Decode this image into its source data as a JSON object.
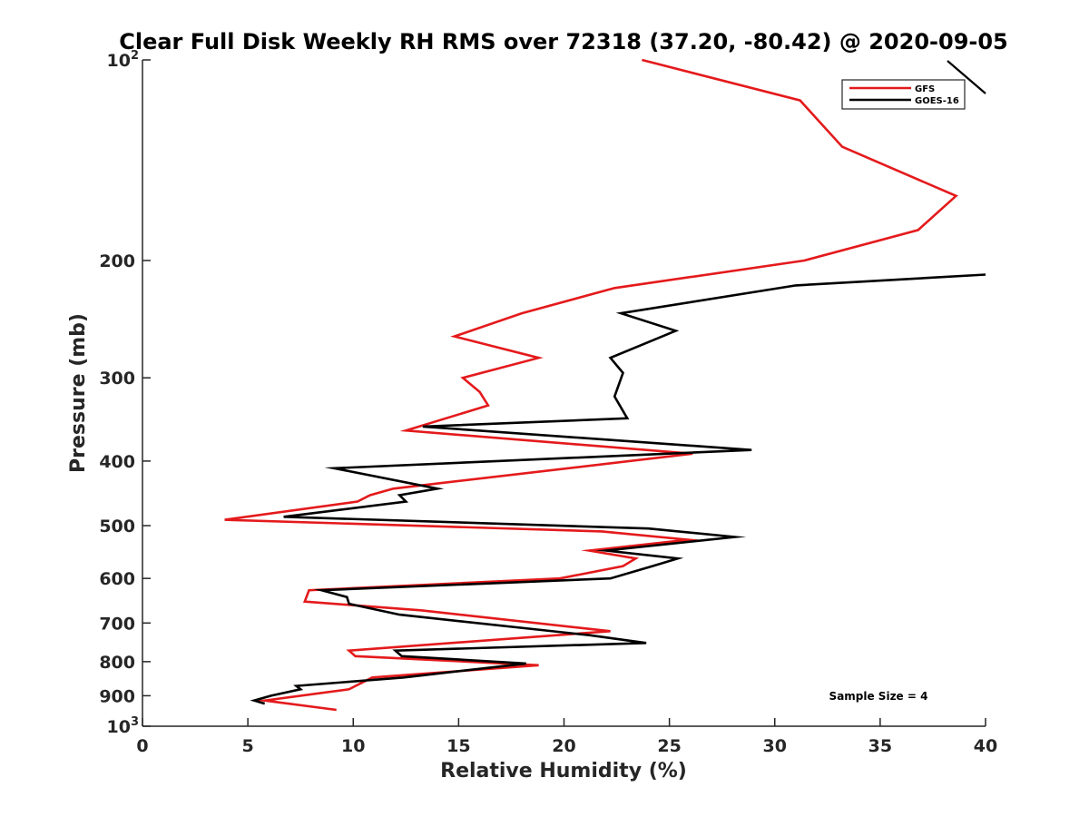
{
  "chart_data": {
    "type": "line",
    "title": "Clear Full Disk Weekly RH RMS over 72318 (37.20, -80.42) @ 2020-09-05",
    "xlabel": "Relative Humidity (%)",
    "ylabel": "Pressure (mb)",
    "xlim": [
      0,
      40
    ],
    "ylim": [
      100,
      1000
    ],
    "y_scale": "log",
    "y_reversed": true,
    "grid": false,
    "legend_position": "top-right",
    "x_ticks": [
      0,
      5,
      10,
      15,
      20,
      25,
      30,
      35,
      40
    ],
    "y_ticks": [
      {
        "value": 100,
        "label": "10",
        "sup": "2"
      },
      {
        "value": 200,
        "label": "200",
        "sup": ""
      },
      {
        "value": 300,
        "label": "300",
        "sup": ""
      },
      {
        "value": 400,
        "label": "400",
        "sup": ""
      },
      {
        "value": 500,
        "label": "500",
        "sup": ""
      },
      {
        "value": 600,
        "label": "600",
        "sup": ""
      },
      {
        "value": 700,
        "label": "700",
        "sup": ""
      },
      {
        "value": 800,
        "label": "800",
        "sup": ""
      },
      {
        "value": 900,
        "label": "900",
        "sup": ""
      },
      {
        "value": 1000,
        "label": "10",
        "sup": "3"
      }
    ],
    "series": [
      {
        "name": "GFS",
        "color": "#e41a1c",
        "points": [
          [
            23.7,
            100
          ],
          [
            31.2,
            115
          ],
          [
            33.2,
            135
          ],
          [
            38.6,
            160
          ],
          [
            36.8,
            180
          ],
          [
            31.4,
            200
          ],
          [
            22.4,
            220
          ],
          [
            18.0,
            240
          ],
          [
            14.8,
            260
          ],
          [
            18.8,
            280
          ],
          [
            15.2,
            300
          ],
          [
            16.0,
            315
          ],
          [
            16.4,
            330
          ],
          [
            12.5,
            360
          ],
          [
            26.1,
            390
          ],
          [
            11.9,
            440
          ],
          [
            10.8,
            450
          ],
          [
            10.2,
            460
          ],
          [
            3.9,
            490
          ],
          [
            21.8,
            510
          ],
          [
            25.9,
            525
          ],
          [
            21.2,
            545
          ],
          [
            23.4,
            560
          ],
          [
            22.8,
            575
          ],
          [
            19.8,
            600
          ],
          [
            7.9,
            625
          ],
          [
            7.7,
            650
          ],
          [
            13.2,
            670
          ],
          [
            22.2,
            720
          ],
          [
            9.8,
            770
          ],
          [
            10.1,
            785
          ],
          [
            18.8,
            810
          ],
          [
            10.9,
            845
          ],
          [
            9.8,
            880
          ],
          [
            5.8,
            915
          ],
          [
            9.2,
            945
          ]
        ]
      },
      {
        "name": "GOES-16",
        "color": "#000000",
        "points": [
          [
            40.0,
            210
          ],
          [
            31.0,
            218
          ],
          [
            22.7,
            240
          ],
          [
            25.3,
            255
          ],
          [
            22.2,
            280
          ],
          [
            22.8,
            295
          ],
          [
            22.4,
            320
          ],
          [
            23.0,
            345
          ],
          [
            13.3,
            355
          ],
          [
            28.9,
            385
          ],
          [
            9.1,
            410
          ],
          [
            14.0,
            440
          ],
          [
            12.2,
            450
          ],
          [
            12.5,
            460
          ],
          [
            6.7,
            485
          ],
          [
            24.0,
            505
          ],
          [
            28.1,
            520
          ],
          [
            22.0,
            545
          ],
          [
            25.4,
            560
          ],
          [
            24.2,
            575
          ],
          [
            22.2,
            600
          ],
          [
            8.5,
            625
          ],
          [
            9.7,
            640
          ],
          [
            9.8,
            655
          ],
          [
            12.2,
            680
          ],
          [
            21.2,
            730
          ],
          [
            23.9,
            750
          ],
          [
            12.0,
            770
          ],
          [
            12.3,
            785
          ],
          [
            18.2,
            805
          ],
          [
            12.4,
            845
          ],
          [
            7.3,
            870
          ],
          [
            7.5,
            880
          ],
          [
            6.1,
            900
          ],
          [
            5.3,
            915
          ],
          [
            5.8,
            925
          ]
        ]
      }
    ],
    "annotations": {
      "sample_size": "Sample Size = 4"
    }
  }
}
